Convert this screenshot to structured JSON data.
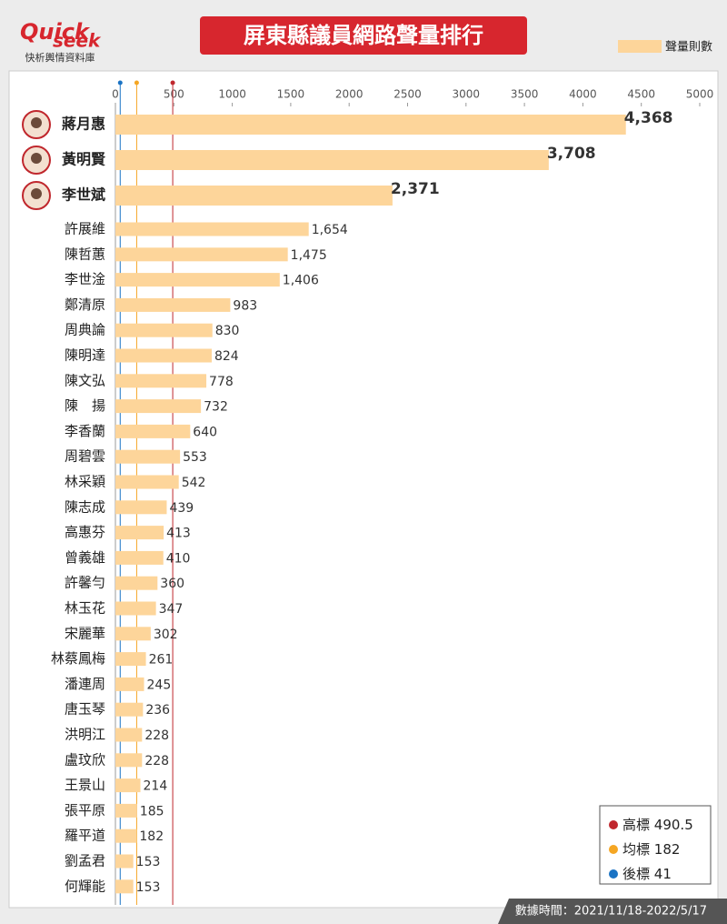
{
  "logo": {
    "word1": "Quick",
    "word2": "seek",
    "subtitle": "快析輿情資料庫"
  },
  "footer": "數據時間：2021/11/18-2022/5/17",
  "chart_data": {
    "type": "bar",
    "orientation": "horizontal",
    "title": "屏東縣議員網路聲量排行",
    "legend": "聲量則數",
    "color": "#fdd59a",
    "categories": [
      "蔣月惠",
      "黃明賢",
      "李世斌",
      "許展維",
      "陳哲蕙",
      "李世淦",
      "鄭清原",
      "周典論",
      "陳明達",
      "陳文弘",
      "陳　揚",
      "李香蘭",
      "周碧雲",
      "林采穎",
      "陳志成",
      "高惠芬",
      "曾義雄",
      "許馨勻",
      "林玉花",
      "宋麗華",
      "林蔡鳳梅",
      "潘連周",
      "唐玉琴",
      "洪明江",
      "盧玟欣",
      "王景山",
      "張平原",
      "羅平道",
      "劉孟君",
      "何輝能"
    ],
    "values": [
      4368,
      3708,
      2371,
      1654,
      1475,
      1406,
      983,
      830,
      824,
      778,
      732,
      640,
      553,
      542,
      439,
      413,
      410,
      360,
      347,
      302,
      261,
      245,
      236,
      228,
      228,
      214,
      185,
      182,
      153,
      153
    ],
    "value_labels": [
      "4,368",
      "3,708",
      "2,371",
      "1,654",
      "1,475",
      "1,406",
      "983",
      "830",
      "824",
      "778",
      "732",
      "640",
      "553",
      "542",
      "439",
      "413",
      "410",
      "360",
      "347",
      "302",
      "261",
      "245",
      "236",
      "228",
      "228",
      "214",
      "185",
      "182",
      "153",
      "153"
    ],
    "xlim": [
      0,
      5000
    ],
    "xticks": [
      0,
      500,
      1000,
      1500,
      2000,
      2500,
      3000,
      3500,
      4000,
      4500,
      5000
    ],
    "reference_lines": [
      {
        "name": "高標",
        "value": 490.5,
        "color": "#c0272d"
      },
      {
        "name": "均標",
        "value": 182,
        "color": "#f5a623"
      },
      {
        "name": "後標",
        "value": 41,
        "color": "#1a73c4"
      }
    ]
  }
}
